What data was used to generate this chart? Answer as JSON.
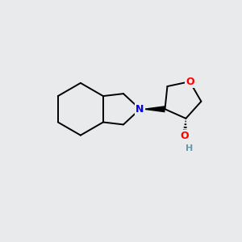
{
  "background_color": "#e8eaeb",
  "fig_size": [
    3.0,
    3.0
  ],
  "dpi": 100,
  "atom_colors": {
    "N": "#0000ee",
    "O": "#ff0000",
    "H": "#6699aa",
    "C": "#000000"
  },
  "bond_color": "#000000",
  "bond_width": 1.4
}
